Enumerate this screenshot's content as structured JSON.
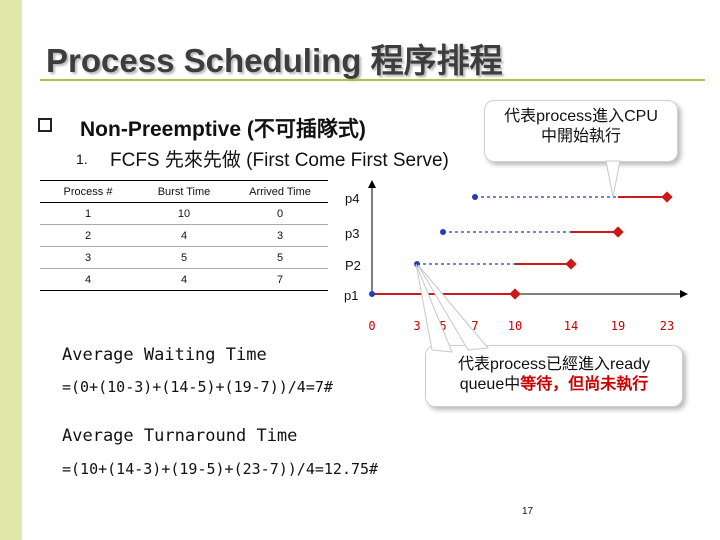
{
  "slide": {
    "title": "Process Scheduling 程序排程",
    "heading": "Non-Preemptive (不可插隊式)",
    "sub_number": "1.",
    "sub_text": "FCFS 先來先做 (First Come First Serve)",
    "page_number": "17"
  },
  "table": {
    "headers": [
      "Process #",
      "Burst Time",
      "Arrived Time"
    ],
    "rows": [
      [
        "1",
        "10",
        "0"
      ],
      [
        "2",
        "4",
        "3"
      ],
      [
        "3",
        "5",
        "5"
      ],
      [
        "4",
        "4",
        "7"
      ]
    ]
  },
  "callouts": {
    "top_line1": "代表process進入CPU",
    "top_line2": "中開始執行",
    "bottom_line1": "代表process已經進入ready",
    "bottom_line2_a": "queue中",
    "bottom_line2_b": "等待，但尚未執行"
  },
  "averages": {
    "waiting_label": "Average Waiting Time",
    "waiting_formula": "=(0+(10-3)+(14-5)+(19-7))/4=7#",
    "turnaround_label": "Average Turnaround Time",
    "turnaround_formula": "=(10+(14-3)+(19-5)+(23-7))/4=12.75#"
  },
  "colors": {
    "blue": "#1f3fbf",
    "red": "#cc1a1a",
    "stripe": "#e1e6a9",
    "rule": "#b5bc4b"
  },
  "chart_data": {
    "type": "gantt",
    "ticks": [
      "0",
      "3",
      "5",
      "7",
      "10",
      "14",
      "19",
      "23"
    ],
    "rows": [
      {
        "label": "p4",
        "arrival": 7,
        "start": 19,
        "end": 23
      },
      {
        "label": "p3",
        "arrival": 5,
        "start": 14,
        "end": 19
      },
      {
        "label": "P2",
        "arrival": 3,
        "start": 10,
        "end": 14
      },
      {
        "label": "p1",
        "arrival": 0,
        "start": 0,
        "end": 10
      }
    ]
  }
}
